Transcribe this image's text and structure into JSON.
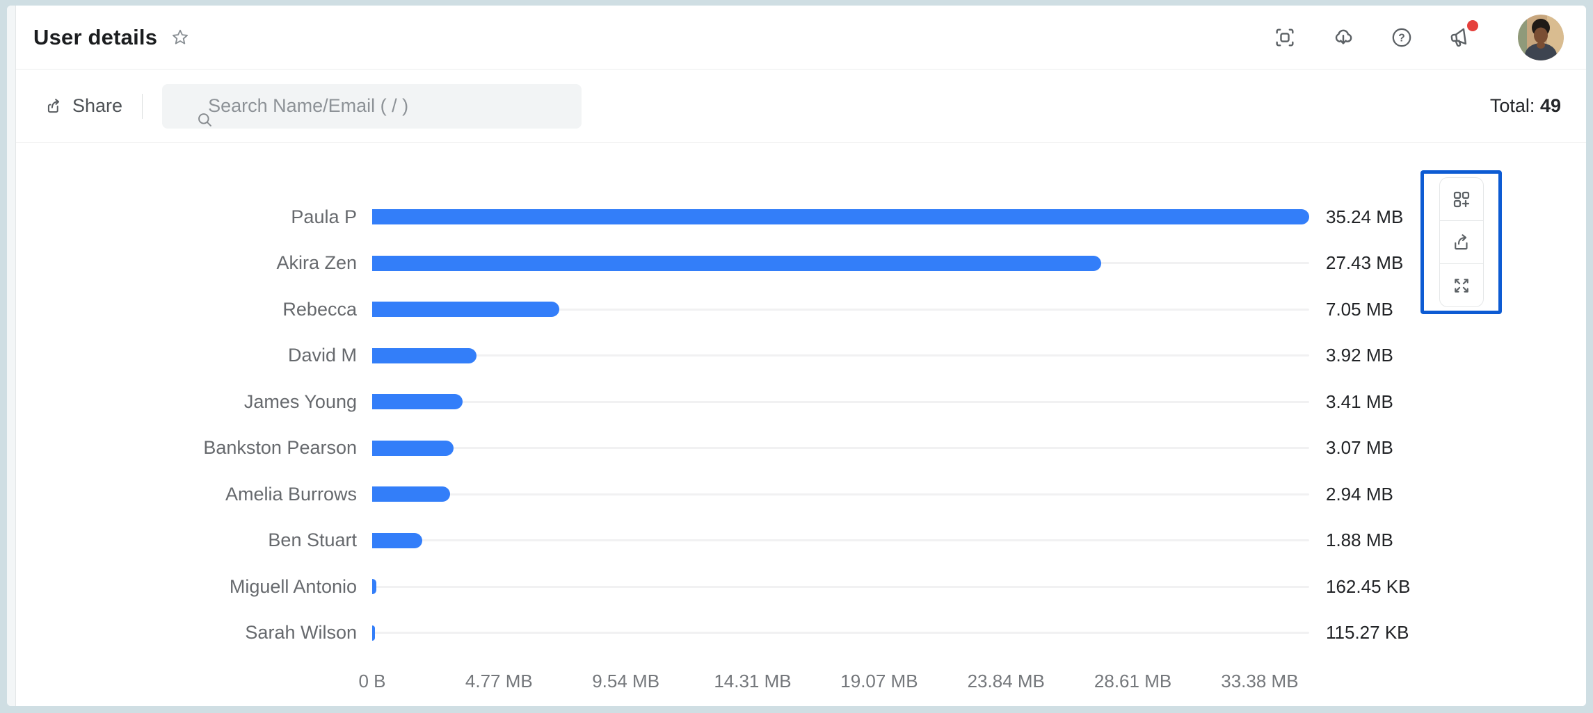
{
  "header": {
    "title": "User details",
    "icons": [
      "star",
      "fit-to-screen",
      "cloud-download",
      "help",
      "announcements",
      "avatar"
    ],
    "has_notification_dot": true
  },
  "toolbar": {
    "share_label": "Share",
    "search_placeholder": "Search Name/Email ( / )",
    "total_label": "Total:",
    "total_value": "49"
  },
  "chart_data": {
    "type": "bar",
    "orientation": "horizontal",
    "title": "",
    "xlabel": "",
    "ylabel": "",
    "categories": [
      "Paula P",
      "Akira Zen",
      "Rebecca",
      "David M",
      "James Young",
      "Bankston Pearson",
      "Amelia Burrows",
      "Ben Stuart",
      "Miguell Antonio",
      "Sarah Wilson"
    ],
    "value_labels": [
      "35.24 MB",
      "27.43 MB",
      "7.05 MB",
      "3.92 MB",
      "3.41 MB",
      "3.07 MB",
      "2.94 MB",
      "1.88 MB",
      "162.45 KB",
      "115.27 KB"
    ],
    "values_mb": [
      35.24,
      27.43,
      7.05,
      3.92,
      3.41,
      3.07,
      2.94,
      1.88,
      0.159,
      0.113
    ],
    "x_tick_labels": [
      "0 B",
      "4.77 MB",
      "9.54 MB",
      "14.31 MB",
      "19.07 MB",
      "23.84 MB",
      "28.61 MB",
      "33.38 MB"
    ],
    "x_tick_mb": [
      0,
      4.77,
      9.54,
      14.31,
      19.07,
      23.84,
      28.61,
      33.38
    ],
    "xlim_mb": [
      0,
      35.24
    ],
    "grid": false,
    "legend": "none",
    "bar_color": "#337EF9",
    "track_color": "#F1F1F2"
  },
  "chart_tools": {
    "buttons": [
      "add-to-dashboard",
      "export",
      "expand"
    ],
    "highlight_border_color": "#0D5BD3"
  },
  "colors": {
    "notification_dot": "#E5403C",
    "frame": "#CFDEE3"
  }
}
